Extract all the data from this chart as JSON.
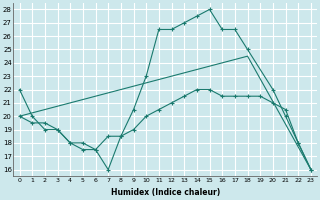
{
  "xlabel": "Humidex (Indice chaleur)",
  "bg_color": "#cde8ec",
  "line_color": "#1a7a6e",
  "grid_color": "#ffffff",
  "xlim": [
    -0.5,
    23.5
  ],
  "ylim": [
    15.5,
    28.5
  ],
  "yticks": [
    16,
    17,
    18,
    19,
    20,
    21,
    22,
    23,
    24,
    25,
    26,
    27,
    28
  ],
  "xticks": [
    0,
    1,
    2,
    3,
    4,
    5,
    6,
    7,
    8,
    9,
    10,
    11,
    12,
    13,
    14,
    15,
    16,
    17,
    18,
    19,
    20,
    21,
    22,
    23
  ],
  "line1_x": [
    0,
    1,
    2,
    3,
    4,
    5,
    6,
    7,
    8,
    9,
    10,
    11,
    12,
    13,
    14,
    15,
    16,
    17,
    18,
    20,
    21,
    22,
    23
  ],
  "line1_y": [
    22,
    20,
    19,
    19,
    18,
    17.5,
    17.5,
    16,
    18.5,
    20.5,
    23,
    26.5,
    26.5,
    27,
    27.5,
    28,
    26.5,
    26.5,
    25,
    22,
    20,
    18,
    16
  ],
  "line2_x": [
    0,
    1,
    2,
    3,
    4,
    5,
    6,
    7,
    8,
    9,
    10,
    11,
    12,
    13,
    14,
    15,
    16,
    17,
    18,
    19,
    20,
    21,
    22,
    23
  ],
  "line2_y": [
    20,
    19.5,
    19.5,
    19,
    18,
    18,
    17.5,
    18.5,
    18.5,
    19,
    20,
    20.5,
    21,
    21.5,
    22,
    22,
    21.5,
    21.5,
    21.5,
    21.5,
    21,
    20.5,
    18,
    16
  ],
  "line3_x": [
    0,
    18,
    23
  ],
  "line3_y": [
    20,
    24.5,
    16
  ]
}
